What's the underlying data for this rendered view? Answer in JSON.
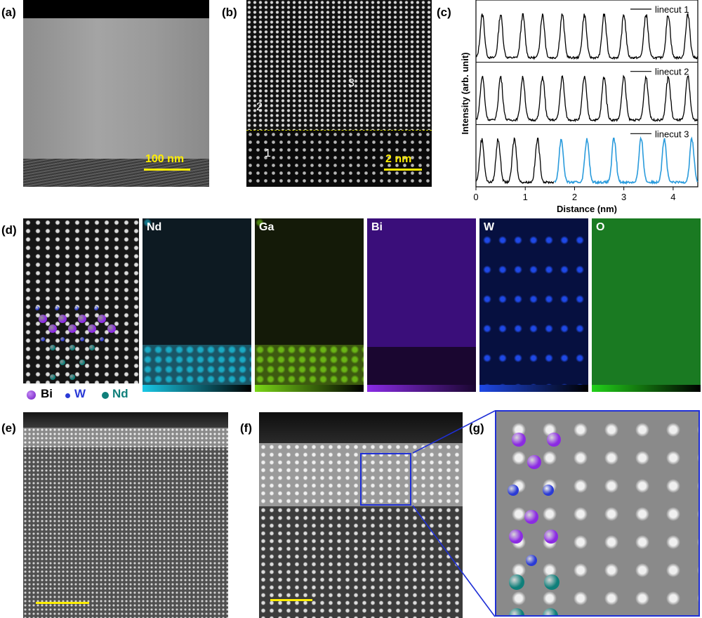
{
  "panels": {
    "a": {
      "label": "(a)",
      "scalebar": "100 nm"
    },
    "b": {
      "label": "(b)",
      "scalebar": "2 nm",
      "regions": [
        "1",
        "2",
        "3"
      ]
    },
    "c": {
      "label": "(c)"
    },
    "d": {
      "label": "(d)",
      "legend": [
        {
          "symbol": "Bi",
          "color": "#8b2be2"
        },
        {
          "symbol": "W",
          "color": "#2a3ad6"
        },
        {
          "symbol": "Nd",
          "color": "#0f7f7a"
        }
      ]
    },
    "e": {
      "label": "(e)"
    },
    "f": {
      "label": "(f)"
    },
    "g": {
      "label": "(g)"
    }
  },
  "eds_maps": [
    {
      "element": "Nd",
      "color": "#19c8e6"
    },
    {
      "element": "Ga",
      "color": "#7ad617"
    },
    {
      "element": "Bi",
      "color": "#8a2be6"
    },
    {
      "element": "W",
      "color": "#1f49e6"
    },
    {
      "element": "O",
      "color": "#22d11a"
    }
  ],
  "chart_data": {
    "type": "line",
    "xlabel": "Distance (nm)",
    "ylabel": "Intensity (arb. unit)",
    "xlim": [
      0,
      4.5
    ],
    "xticks": [
      0,
      1,
      2,
      3,
      4
    ],
    "series": [
      {
        "name": "linecut 1",
        "color": "#000000",
        "peaks": [
          0.13,
          0.5,
          0.95,
          1.35,
          1.75,
          2.2,
          2.6,
          3.0,
          3.45,
          3.9,
          4.3
        ]
      },
      {
        "name": "linecut 2",
        "color": "#000000",
        "peaks": [
          0.13,
          0.5,
          0.95,
          1.35,
          1.75,
          2.2,
          2.6,
          3.0,
          3.45,
          3.9,
          4.3
        ]
      },
      {
        "name": "linecut 3",
        "color": "#000000",
        "color2": "#2a9bdc",
        "switch_x": 1.58,
        "peaks": [
          0.12,
          0.45,
          0.78,
          1.25,
          1.73,
          2.25,
          2.8,
          3.35,
          3.82,
          4.38
        ]
      }
    ]
  }
}
